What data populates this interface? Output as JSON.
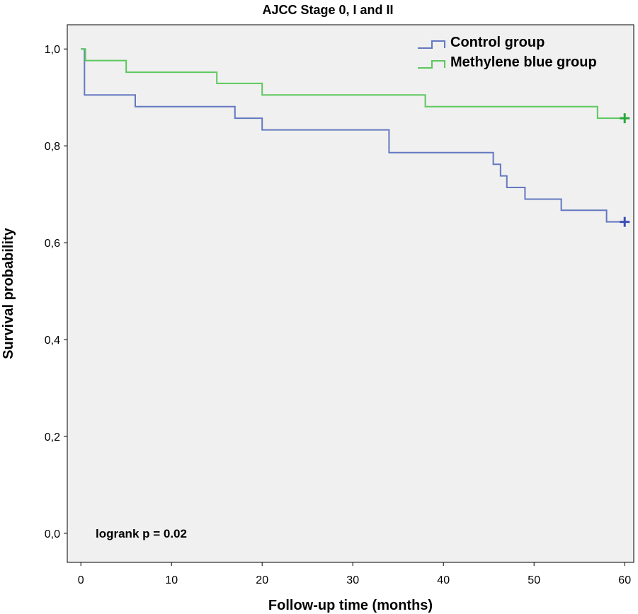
{
  "chart_data": {
    "type": "line",
    "title": "AJCC Stage 0, I and II",
    "xlabel": "Follow-up time (months)",
    "ylabel": "Survival probability",
    "xlim": [
      -1.5,
      61
    ],
    "ylim": [
      -0.06,
      1.05
    ],
    "xticks": [
      0,
      10,
      20,
      30,
      40,
      50,
      60
    ],
    "xtick_labels": [
      "0",
      "10",
      "20",
      "30",
      "40",
      "50",
      "60"
    ],
    "yticks": [
      0.0,
      0.2,
      0.4,
      0.6,
      0.8,
      1.0
    ],
    "ytick_labels": [
      "0,0",
      "0,2",
      "0,4",
      "0,6",
      "0,8",
      "1,0"
    ],
    "grid": false,
    "legend_position": "top-right",
    "annotation": "logrank p = 0.02",
    "series": [
      {
        "name": "Control group",
        "color": "#6478c0",
        "censor_color": "#3a4fb4",
        "step": true,
        "points": [
          [
            0,
            1.0
          ],
          [
            0.4,
            0.905
          ],
          [
            6,
            0.881
          ],
          [
            17,
            0.857
          ],
          [
            20,
            0.833
          ],
          [
            34,
            0.786
          ],
          [
            45.5,
            0.762
          ],
          [
            46.3,
            0.738
          ],
          [
            47,
            0.714
          ],
          [
            49,
            0.69
          ],
          [
            53,
            0.667
          ],
          [
            58,
            0.643
          ],
          [
            60,
            0.643
          ]
        ],
        "censored": [
          [
            60,
            0.643
          ]
        ]
      },
      {
        "name": "Methylene blue group",
        "color": "#5cc85c",
        "censor_color": "#2aa83a",
        "step": true,
        "points": [
          [
            0,
            1.0
          ],
          [
            0.5,
            0.976
          ],
          [
            5,
            0.952
          ],
          [
            15,
            0.929
          ],
          [
            20,
            0.905
          ],
          [
            38,
            0.881
          ],
          [
            57,
            0.857
          ],
          [
            60,
            0.857
          ]
        ],
        "censored": [
          [
            60,
            0.857
          ]
        ]
      }
    ]
  }
}
